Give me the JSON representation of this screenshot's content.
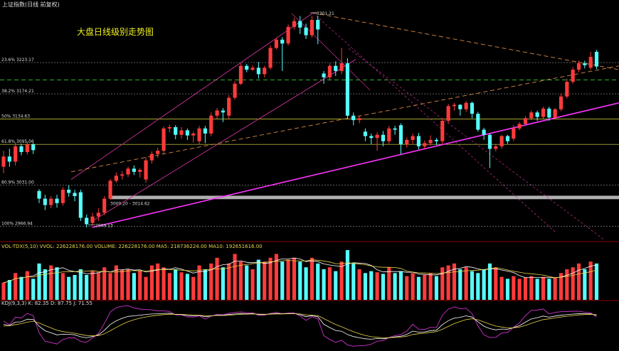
{
  "window": {
    "title": "上证指数(日线 前复权)"
  },
  "annotation": {
    "title": "大盘日线级别走势图"
  },
  "colors": {
    "up": "#ff3b3b",
    "down": "#55ffff",
    "fib": "#c8c8c8",
    "support": "#ff33ff",
    "trend": "#d88a44",
    "channel": "#cc3399",
    "band": "#b0b0b0",
    "mid": "#33cc33"
  },
  "chart_data": {
    "type": "candlestick",
    "price_range": [
      2945,
      3310
    ],
    "fib_levels": [
      {
        "label": "23.6% 3223.17",
        "value": 3223.17
      },
      {
        "label": "38.2% 3174.21",
        "value": 3174.21
      },
      {
        "label": "50% 3134.63",
        "value": 3134.63
      },
      {
        "label": "61.8% 3095.06",
        "value": 3095.06
      },
      {
        "label": "80.9% 3031.00",
        "value": 3031.0
      },
      {
        "label": "100% 2966.94",
        "value": 2966.94
      }
    ],
    "high_label": "3301.21",
    "high_value": 3301.21,
    "low_label": "2969.13",
    "low_value": 2969.13,
    "band_label": "3009.20 - 3014.62",
    "band": [
      3009.2,
      3014.62
    ],
    "candles": [
      [
        3060,
        3076,
        3050,
        3085
      ],
      [
        3076,
        3068,
        3060,
        3088
      ],
      [
        3068,
        3092,
        3062,
        3098
      ],
      [
        3092,
        3083,
        3078,
        3096
      ],
      [
        3083,
        3095,
        3079,
        3099
      ],
      [
        3095,
        3086,
        3080,
        3097
      ],
      [
        3022,
        3010,
        3003,
        3025
      ],
      [
        3010,
        3000,
        2992,
        3016
      ],
      [
        3000,
        3010,
        2995,
        3014
      ],
      [
        3010,
        3003,
        2996,
        3016
      ],
      [
        3003,
        3024,
        2999,
        3028
      ],
      [
        3024,
        3019,
        3013,
        3031
      ],
      [
        3019,
        3014,
        3006,
        3024
      ],
      [
        3020,
        2980,
        2975,
        3024
      ],
      [
        2980,
        2970,
        2965,
        2985
      ],
      [
        2972,
        2982,
        2968,
        2988
      ],
      [
        2982,
        2988,
        2975,
        2995
      ],
      [
        2988,
        3010,
        2984,
        3014
      ],
      [
        3010,
        3038,
        3008,
        3041
      ],
      [
        3038,
        3046,
        3035,
        3051
      ],
      [
        3046,
        3048,
        3040,
        3053
      ],
      [
        3048,
        3057,
        3044,
        3060
      ],
      [
        3057,
        3052,
        3047,
        3062
      ],
      [
        3052,
        3055,
        3043,
        3058
      ],
      [
        3040,
        3070,
        3035,
        3075
      ],
      [
        3070,
        3080,
        3065,
        3084
      ],
      [
        3080,
        3085,
        3074,
        3090
      ],
      [
        3085,
        3120,
        3080,
        3123
      ],
      [
        3120,
        3122,
        3114,
        3126
      ],
      [
        3122,
        3110,
        3103,
        3125
      ],
      [
        3110,
        3117,
        3104,
        3122
      ],
      [
        3117,
        3109,
        3102,
        3120
      ],
      [
        3109,
        3112,
        3098,
        3115
      ],
      [
        3100,
        3120,
        3095,
        3124
      ],
      [
        3120,
        3112,
        3097,
        3124
      ],
      [
        3112,
        3140,
        3108,
        3145
      ],
      [
        3140,
        3148,
        3135,
        3152
      ],
      [
        3148,
        3145,
        3130,
        3152
      ],
      [
        3140,
        3168,
        3135,
        3172
      ],
      [
        3168,
        3190,
        3165,
        3194
      ],
      [
        3190,
        3218,
        3188,
        3222
      ],
      [
        3218,
        3212,
        3208,
        3221
      ],
      [
        3212,
        3215,
        3210,
        3219
      ],
      [
        3215,
        3205,
        3198,
        3224
      ],
      [
        3205,
        3215,
        3200,
        3218
      ],
      [
        3215,
        3246,
        3212,
        3250
      ],
      [
        3246,
        3259,
        3244,
        3262
      ],
      [
        3259,
        3253,
        3210,
        3263
      ],
      [
        3253,
        3279,
        3250,
        3283
      ],
      [
        3279,
        3288,
        3275,
        3293
      ],
      [
        3288,
        3278,
        3268,
        3296
      ],
      [
        3278,
        3266,
        3260,
        3284
      ],
      [
        3266,
        3290,
        3262,
        3296
      ],
      [
        3290,
        3275,
        3252,
        3296
      ],
      [
        3206,
        3200,
        3190,
        3210
      ],
      [
        3200,
        3218,
        3195,
        3222
      ],
      [
        3218,
        3210,
        3202,
        3225
      ],
      [
        3210,
        3222,
        3205,
        3246
      ],
      [
        3222,
        3140,
        3135,
        3230
      ],
      [
        3140,
        3133,
        3125,
        3145
      ],
      [
        3133,
        3136,
        3128,
        3140
      ],
      [
        3115,
        3108,
        3100,
        3120
      ],
      [
        3108,
        3105,
        3095,
        3112
      ],
      [
        3105,
        3110,
        3085,
        3114
      ],
      [
        3110,
        3100,
        3092,
        3116
      ],
      [
        3100,
        3120,
        3096,
        3124
      ],
      [
        3120,
        3118,
        3110,
        3124
      ],
      [
        3125,
        3095,
        3080,
        3128
      ],
      [
        3095,
        3102,
        3090,
        3106
      ],
      [
        3102,
        3108,
        3096,
        3112
      ],
      [
        3108,
        3092,
        3087,
        3113
      ],
      [
        3092,
        3097,
        3088,
        3101
      ],
      [
        3097,
        3102,
        3093,
        3109
      ],
      [
        3102,
        3100,
        3094,
        3105
      ],
      [
        3100,
        3132,
        3096,
        3135
      ],
      [
        3132,
        3155,
        3128,
        3158
      ],
      [
        3155,
        3157,
        3148,
        3160
      ],
      [
        3157,
        3150,
        3140,
        3158
      ],
      [
        3150,
        3160,
        3146,
        3163
      ],
      [
        3160,
        3143,
        3136,
        3162
      ],
      [
        3143,
        3118,
        3115,
        3146
      ],
      [
        3118,
        3110,
        3102,
        3121
      ],
      [
        3110,
        3088,
        3058,
        3112
      ],
      [
        3088,
        3092,
        3084,
        3095
      ],
      [
        3092,
        3108,
        3088,
        3110
      ],
      [
        3108,
        3100,
        3096,
        3110
      ],
      [
        3104,
        3120,
        3100,
        3125
      ],
      [
        3120,
        3127,
        3117,
        3130
      ],
      [
        3127,
        3136,
        3124,
        3139
      ],
      [
        3136,
        3145,
        3133,
        3148
      ],
      [
        3145,
        3138,
        3132,
        3148
      ],
      [
        3138,
        3151,
        3135,
        3154
      ],
      [
        3151,
        3137,
        3132,
        3154
      ],
      [
        3137,
        3150,
        3134,
        3152
      ],
      [
        3150,
        3170,
        3147,
        3175
      ],
      [
        3170,
        3193,
        3167,
        3198
      ],
      [
        3193,
        3212,
        3190,
        3216
      ],
      [
        3212,
        3222,
        3208,
        3226
      ],
      [
        3222,
        3219,
        3214,
        3226
      ],
      [
        3215,
        3232,
        3212,
        3240
      ],
      [
        3240,
        3217,
        3213,
        3243
      ]
    ],
    "volume": {
      "label": "VOL-TDX(5,10) VVOL: 226228176.00  VOLUME: 226228176.00  MA5: 218736224.00  MA10: 192651616.00",
      "range": [
        0,
        1.3
      ],
      "values": [
        0.45,
        0.52,
        0.7,
        0.6,
        0.75,
        0.55,
        0.95,
        0.8,
        0.9,
        0.85,
        0.7,
        0.6,
        0.65,
        0.8,
        0.65,
        0.75,
        0.7,
        0.85,
        0.7,
        0.9,
        0.78,
        0.8,
        0.7,
        0.75,
        0.6,
        0.9,
        0.95,
        0.85,
        0.7,
        0.8,
        0.72,
        0.68,
        0.6,
        0.9,
        0.8,
        0.95,
        1.1,
        0.85,
        0.95,
        1.2,
        1.0,
        0.9,
        0.8,
        1.05,
        1.0,
        1.1,
        1.2,
        1.0,
        1.05,
        1.1,
        1.0,
        0.85,
        1.1,
        0.95,
        0.8,
        0.85,
        0.75,
        1.0,
        1.3,
        0.95,
        0.8,
        0.7,
        0.75,
        0.72,
        0.68,
        0.85,
        0.7,
        0.75,
        0.62,
        0.7,
        0.6,
        0.65,
        0.7,
        0.62,
        0.85,
        0.9,
        0.95,
        0.8,
        0.85,
        0.75,
        0.7,
        0.8,
        0.95,
        0.85,
        0.6,
        0.55,
        0.62,
        0.55,
        0.58,
        0.62,
        0.55,
        0.6,
        0.55,
        0.58,
        0.7,
        0.8,
        0.85,
        0.95,
        0.8,
        1.0,
        0.95
      ]
    },
    "kdj": {
      "label": "KDJ(9,3,3)  K: 82.35  D: 87.75  J: 71.55"
    }
  }
}
